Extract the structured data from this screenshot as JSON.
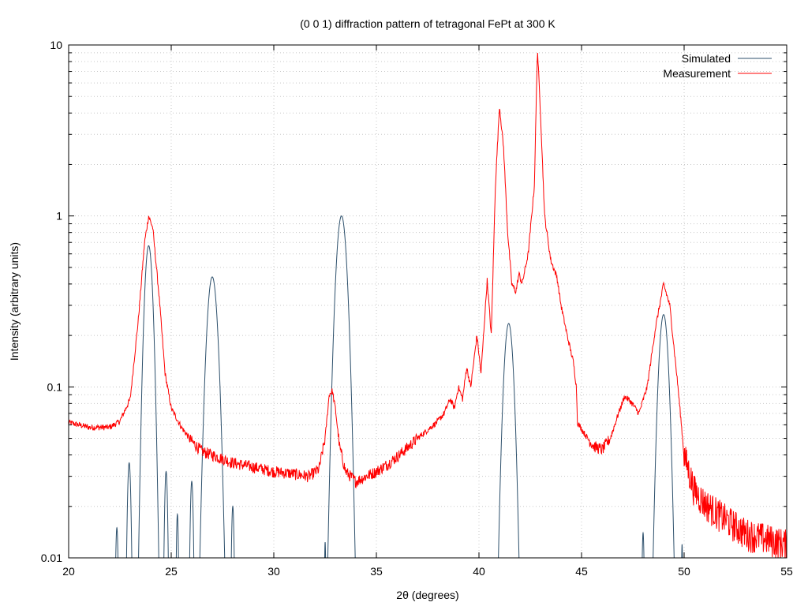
{
  "chart_data": {
    "type": "line",
    "title": "(0 0 1) diffraction pattern of tetragonal FePt at 300 K",
    "xlabel": "2θ (degrees)",
    "ylabel": "Intensity (arbitrary units)",
    "xlim": [
      20,
      55
    ],
    "ylim": [
      0.01,
      10
    ],
    "y_scale": "log",
    "grid": true,
    "legend_position": "top-right",
    "x_ticks": [
      {
        "value": 20,
        "label": "20"
      },
      {
        "value": 25,
        "label": "25"
      },
      {
        "value": 30,
        "label": "30"
      },
      {
        "value": 35,
        "label": "35"
      },
      {
        "value": 40,
        "label": "40"
      },
      {
        "value": 45,
        "label": "45"
      },
      {
        "value": 50,
        "label": "50"
      },
      {
        "value": 55,
        "label": "55"
      }
    ],
    "y_ticks": [
      {
        "value": 0.01,
        "label": "0.01"
      },
      {
        "value": 0.1,
        "label": "0.1"
      },
      {
        "value": 1,
        "label": "1"
      },
      {
        "value": 10,
        "label": "10"
      }
    ],
    "series": [
      {
        "name": "Simulated",
        "color": "#2c4f6b",
        "peaks": [
          {
            "x": 22.35,
            "y": 0.015,
            "w": 0.06
          },
          {
            "x": 22.95,
            "y": 0.036,
            "w": 0.08
          },
          {
            "x": 23.9,
            "y": 0.67,
            "w": 0.17
          },
          {
            "x": 24.75,
            "y": 0.032,
            "w": 0.07
          },
          {
            "x": 25.3,
            "y": 0.018,
            "w": 0.05
          },
          {
            "x": 26.0,
            "y": 0.028,
            "w": 0.07
          },
          {
            "x": 27.0,
            "y": 0.44,
            "w": 0.22
          },
          {
            "x": 28.0,
            "y": 0.02,
            "w": 0.06
          },
          {
            "x": 32.5,
            "y": 0.011,
            "w": 0.03
          },
          {
            "x": 33.3,
            "y": 1.0,
            "w": 0.22
          },
          {
            "x": 41.45,
            "y": 0.235,
            "w": 0.2
          },
          {
            "x": 48.0,
            "y": 0.014,
            "w": 0.05
          },
          {
            "x": 49.0,
            "y": 0.265,
            "w": 0.2
          },
          {
            "x": 49.9,
            "y": 0.012,
            "w": 0.03
          }
        ]
      },
      {
        "name": "Measurement",
        "color": "#ff0000",
        "points": [
          [
            20.0,
            0.062
          ],
          [
            21.0,
            0.058
          ],
          [
            22.0,
            0.058
          ],
          [
            22.5,
            0.063
          ],
          [
            23.0,
            0.085
          ],
          [
            23.4,
            0.25
          ],
          [
            23.7,
            0.7
          ],
          [
            23.9,
            1.0
          ],
          [
            24.1,
            0.85
          ],
          [
            24.4,
            0.35
          ],
          [
            24.7,
            0.12
          ],
          [
            25.0,
            0.075
          ],
          [
            25.5,
            0.058
          ],
          [
            26.0,
            0.048
          ],
          [
            26.5,
            0.042
          ],
          [
            27.0,
            0.04
          ],
          [
            27.5,
            0.038
          ],
          [
            28.0,
            0.036
          ],
          [
            29.0,
            0.034
          ],
          [
            30.0,
            0.032
          ],
          [
            31.0,
            0.031
          ],
          [
            31.7,
            0.03
          ],
          [
            32.2,
            0.033
          ],
          [
            32.5,
            0.05
          ],
          [
            32.7,
            0.09
          ],
          [
            32.85,
            0.095
          ],
          [
            33.0,
            0.075
          ],
          [
            33.2,
            0.045
          ],
          [
            33.5,
            0.032
          ],
          [
            34.0,
            0.028
          ],
          [
            34.5,
            0.03
          ],
          [
            35.0,
            0.032
          ],
          [
            35.5,
            0.035
          ],
          [
            36.0,
            0.039
          ],
          [
            36.5,
            0.044
          ],
          [
            37.0,
            0.05
          ],
          [
            37.5,
            0.056
          ],
          [
            38.0,
            0.063
          ],
          [
            38.3,
            0.07
          ],
          [
            38.6,
            0.085
          ],
          [
            38.8,
            0.075
          ],
          [
            39.0,
            0.1
          ],
          [
            39.2,
            0.085
          ],
          [
            39.4,
            0.13
          ],
          [
            39.6,
            0.1
          ],
          [
            39.9,
            0.2
          ],
          [
            40.1,
            0.12
          ],
          [
            40.4,
            0.42
          ],
          [
            40.6,
            0.2
          ],
          [
            40.8,
            1.5
          ],
          [
            41.0,
            4.4
          ],
          [
            41.2,
            2.5
          ],
          [
            41.4,
            0.8
          ],
          [
            41.6,
            0.4
          ],
          [
            41.8,
            0.36
          ],
          [
            41.95,
            0.46
          ],
          [
            42.1,
            0.4
          ],
          [
            42.4,
            0.6
          ],
          [
            42.7,
            1.5
          ],
          [
            42.85,
            9.5
          ],
          [
            43.0,
            4.0
          ],
          [
            43.2,
            1.0
          ],
          [
            43.5,
            0.55
          ],
          [
            43.8,
            0.44
          ],
          [
            44.0,
            0.3
          ],
          [
            44.3,
            0.2
          ],
          [
            44.6,
            0.14
          ],
          [
            44.75,
            0.1
          ],
          [
            44.8,
            0.062
          ],
          [
            45.2,
            0.052
          ],
          [
            45.6,
            0.045
          ],
          [
            46.0,
            0.043
          ],
          [
            46.4,
            0.05
          ],
          [
            46.8,
            0.07
          ],
          [
            47.1,
            0.088
          ],
          [
            47.4,
            0.082
          ],
          [
            47.8,
            0.07
          ],
          [
            48.2,
            0.1
          ],
          [
            48.6,
            0.22
          ],
          [
            49.0,
            0.4
          ],
          [
            49.3,
            0.3
          ],
          [
            49.7,
            0.1
          ],
          [
            50.0,
            0.04
          ],
          [
            50.5,
            0.025
          ],
          [
            51.0,
            0.021
          ],
          [
            52.0,
            0.017
          ],
          [
            53.0,
            0.014
          ],
          [
            54.0,
            0.013
          ],
          [
            55.0,
            0.012
          ]
        ]
      }
    ]
  }
}
